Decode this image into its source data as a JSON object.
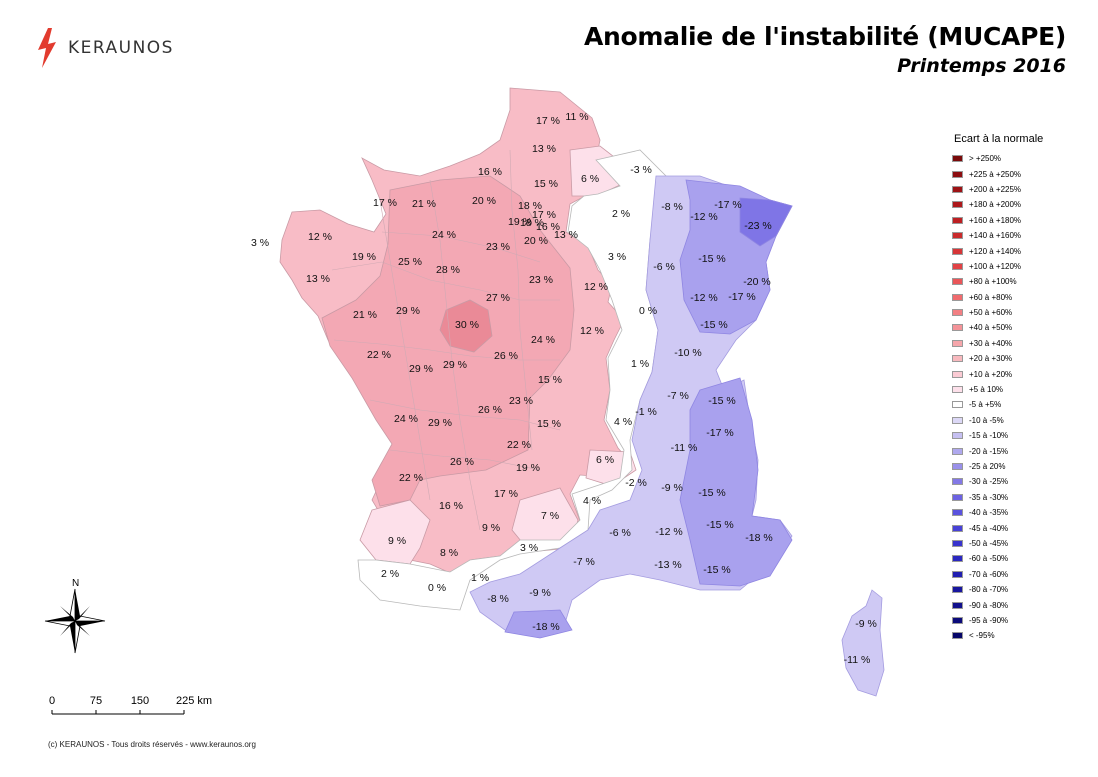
{
  "logo": {
    "brand": "KERAUNOS"
  },
  "title": {
    "main": "Anomalie de l'instabilité (MUCAPE)",
    "subtitle": "Printemps 2016"
  },
  "legend": {
    "title": "Ecart à la normale",
    "items": [
      {
        "label": "> +250%",
        "color": "#7a0a0a"
      },
      {
        "label": "+225 à +250%",
        "color": "#8c0d10"
      },
      {
        "label": "+200 à +225%",
        "color": "#9d1215"
      },
      {
        "label": "+180 à +200%",
        "color": "#ad181b"
      },
      {
        "label": "+160 à +180%",
        "color": "#bd1f22"
      },
      {
        "label": "+140 à +160%",
        "color": "#c92a2c"
      },
      {
        "label": "+120 à +140%",
        "color": "#d63537"
      },
      {
        "label": "+100 à +120%",
        "color": "#e14245"
      },
      {
        "label": "+80 à +100%",
        "color": "#ea5558"
      },
      {
        "label": "+60 à +80%",
        "color": "#f06b6e"
      },
      {
        "label": "+50 à +60%",
        "color": "#f27f83"
      },
      {
        "label": "+40 à +50%",
        "color": "#f49398"
      },
      {
        "label": "+30 à +40%",
        "color": "#f6a6ab"
      },
      {
        "label": "+20 à +30%",
        "color": "#f8b9be"
      },
      {
        "label": "+10 à +20%",
        "color": "#fbcbd4"
      },
      {
        "label": "+5 à 10%",
        "color": "#fde0ea"
      },
      {
        "label": "-5 à +5%",
        "color": "#ffffff"
      },
      {
        "label": "-10 à -5%",
        "color": "#dcd8f6"
      },
      {
        "label": "-15 à -10%",
        "color": "#c6c0f2"
      },
      {
        "label": "-20 à -15%",
        "color": "#afa8ee"
      },
      {
        "label": "-25 à 20%",
        "color": "#9990ea"
      },
      {
        "label": "-30 à -25%",
        "color": "#8378e6"
      },
      {
        "label": "-35 à -30%",
        "color": "#6c62e2"
      },
      {
        "label": "-40 à -35%",
        "color": "#5a52de"
      },
      {
        "label": "-45 à -40%",
        "color": "#4741d7"
      },
      {
        "label": "-50 à -45%",
        "color": "#3833cd"
      },
      {
        "label": "-60 à -50%",
        "color": "#2a27c0"
      },
      {
        "label": "-70 à -60%",
        "color": "#201eb0"
      },
      {
        "label": "-80 à -70%",
        "color": "#18169e"
      },
      {
        "label": "-90 à -80%",
        "color": "#11108c"
      },
      {
        "label": "-95 à -90%",
        "color": "#0b0a7a"
      },
      {
        "label": "< -95%",
        "color": "#060668"
      }
    ]
  },
  "map_labels": [
    "3 %",
    "12 %",
    "13 %",
    "19 %",
    "17 %",
    "21 %",
    "20 %",
    "16 %",
    "17 %",
    "11 %",
    "13 %",
    "15 %",
    "18 %",
    "19 %",
    "18 %",
    "17 %",
    "16 %",
    "20 %",
    "13 %",
    "6 %",
    "-3 %",
    "2 %",
    "-8 %",
    "-17 %",
    "-12 %",
    "-23 %",
    "3 %",
    "-6 %",
    "-15 %",
    "-20 %",
    "-12 %",
    "-17 %",
    "-15 %",
    "0 %",
    "-10 %",
    "1 %",
    "12 %",
    "12 %",
    "23 %",
    "24 %",
    "25 %",
    "28 %",
    "23 %",
    "27 %",
    "30 %",
    "21 %",
    "29 %",
    "22 %",
    "29 %",
    "29 %",
    "26 %",
    "24 %",
    "15 %",
    "23 %",
    "26 %",
    "24 %",
    "29 %",
    "15 %",
    "4 %",
    "-1 %",
    "-7 %",
    "-15 %",
    "-17 %",
    "-11 %",
    "22 %",
    "26 %",
    "22 %",
    "19 %",
    "6 %",
    "-2 %",
    "-9 %",
    "-15 %",
    "17 %",
    "16 %",
    "4 %",
    "7 %",
    "9 %",
    "-15 %",
    "-6 %",
    "-12 %",
    "-18 %",
    "9 %",
    "8 %",
    "3 %",
    "-7 %",
    "-13 %",
    "-15 %",
    "2 %",
    "1 %",
    "0 %",
    "-8 %",
    "-9 %",
    "-18 %",
    "-9 %",
    "-11 %"
  ],
  "north": {
    "label": "N"
  },
  "scale": {
    "ticks": [
      "0",
      "75",
      "150",
      "225 km"
    ]
  },
  "footer": {
    "copyright": "(c) KERAUNOS - Tous droits réservés - www.keraunos.org"
  }
}
